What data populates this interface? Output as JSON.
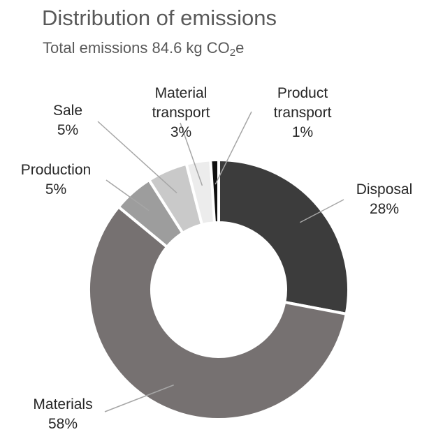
{
  "chart_data": {
    "type": "pie",
    "title": "Distribution of emissions",
    "subtitle": {
      "prefix": "Total emissions 84.6 kg CO",
      "subscript": "2",
      "suffix": "e"
    },
    "slices": [
      {
        "label_lines": [
          "Disposal"
        ],
        "value_label": "28%",
        "value": 28,
        "color": "#3c3c3c"
      },
      {
        "label_lines": [
          "Materials"
        ],
        "value_label": "58%",
        "value": 58,
        "color": "#767171"
      },
      {
        "label_lines": [
          "Production"
        ],
        "value_label": "5%",
        "value": 5,
        "color": "#9d9d9d"
      },
      {
        "label_lines": [
          "Sale"
        ],
        "value_label": "5%",
        "value": 5,
        "color": "#c9c9c9"
      },
      {
        "label_lines": [
          "Material",
          "transport"
        ],
        "value_label": "3%",
        "value": 3,
        "color": "#ececec"
      },
      {
        "label_lines": [
          "Product",
          "transport"
        ],
        "value_label": "1%",
        "value": 1,
        "color": "#111111"
      }
    ]
  }
}
